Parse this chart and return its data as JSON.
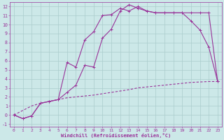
{
  "xlabel": "Windchill (Refroidissement éolien,°C)",
  "background_color": "#cce8e8",
  "grid_color": "#aacccc",
  "line_color": "#993399",
  "xlim": [
    -0.5,
    23.5
  ],
  "ylim": [
    -1.3,
    12.5
  ],
  "xticks": [
    0,
    1,
    2,
    3,
    4,
    5,
    6,
    7,
    8,
    9,
    10,
    11,
    12,
    13,
    14,
    15,
    16,
    17,
    18,
    19,
    20,
    21,
    22,
    23
  ],
  "yticks": [
    -1,
    0,
    1,
    2,
    3,
    4,
    5,
    6,
    7,
    8,
    9,
    10,
    11,
    12
  ],
  "series": [
    {
      "x": [
        0,
        1,
        2,
        3,
        4,
        5,
        6,
        7,
        8,
        9,
        10,
        11,
        12,
        13,
        14,
        15,
        16,
        17,
        18,
        19,
        20,
        21,
        22,
        23
      ],
      "y": [
        0,
        -0.4,
        -0.1,
        1.3,
        1.5,
        1.7,
        5.8,
        5.3,
        8.3,
        9.2,
        11.0,
        11.1,
        11.8,
        11.5,
        12.0,
        11.5,
        11.3,
        11.3,
        11.3,
        11.3,
        10.4,
        9.4,
        7.5,
        3.7
      ],
      "marker": true,
      "linestyle": "solid"
    },
    {
      "x": [
        0,
        1,
        2,
        3,
        4,
        5,
        6,
        7,
        8,
        9,
        10,
        11,
        12,
        13,
        14,
        15,
        16,
        17,
        18,
        19,
        20,
        21,
        22,
        23
      ],
      "y": [
        0,
        -0.4,
        -0.1,
        1.3,
        1.5,
        1.7,
        2.5,
        3.3,
        5.5,
        5.3,
        8.5,
        9.5,
        11.5,
        12.2,
        11.8,
        11.5,
        11.3,
        11.3,
        11.3,
        11.3,
        11.3,
        11.3,
        11.3,
        3.7
      ],
      "marker": true,
      "linestyle": "solid"
    },
    {
      "x": [
        0,
        1,
        2,
        3,
        4,
        5,
        6,
        7,
        8,
        9,
        10,
        11,
        12,
        13,
        14,
        15,
        16,
        17,
        18,
        19,
        20,
        21,
        22,
        23
      ],
      "y": [
        0,
        0.5,
        1.0,
        1.3,
        1.5,
        1.7,
        1.9,
        2.0,
        2.1,
        2.2,
        2.35,
        2.5,
        2.65,
        2.8,
        3.0,
        3.1,
        3.2,
        3.3,
        3.4,
        3.5,
        3.6,
        3.65,
        3.7,
        3.7
      ],
      "marker": false,
      "linestyle": "dashed"
    }
  ]
}
